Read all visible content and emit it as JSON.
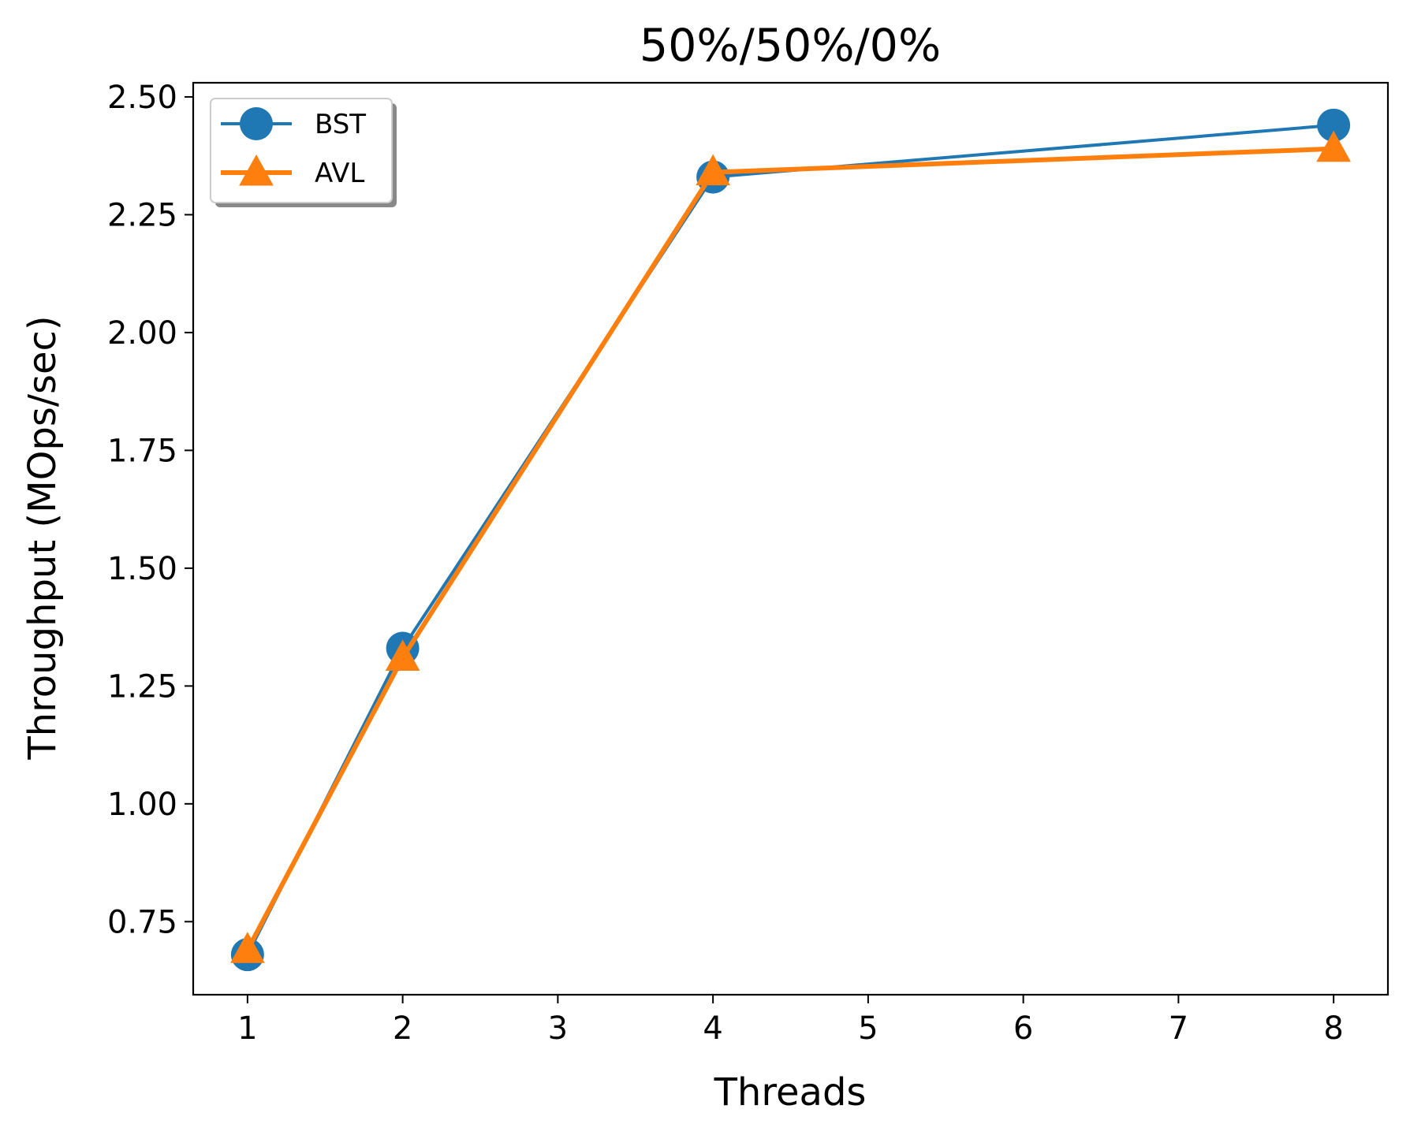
{
  "chart_data": {
    "type": "line",
    "title": "50%/50%/0%",
    "xlabel": "Threads",
    "ylabel": "Throughput (MOps/sec)",
    "x": [
      1,
      2,
      4,
      8
    ],
    "xlim": [
      0.65,
      8.35
    ],
    "ylim": [
      0.595,
      2.53
    ],
    "xticks": [
      1,
      2,
      3,
      4,
      5,
      6,
      7,
      8
    ],
    "xtick_labels": [
      "1",
      "2",
      "3",
      "4",
      "5",
      "6",
      "7",
      "8"
    ],
    "yticks": [
      0.75,
      1.0,
      1.25,
      1.5,
      1.75,
      2.0,
      2.25,
      2.5
    ],
    "ytick_labels": [
      "0.75",
      "1.00",
      "1.25",
      "1.50",
      "1.75",
      "2.00",
      "2.25",
      "2.50"
    ],
    "grid": false,
    "legend_position": "top-left",
    "series": [
      {
        "name": "BST",
        "marker": "circle",
        "color": "#1f77b4",
        "values": [
          0.68,
          1.33,
          2.33,
          2.44
        ]
      },
      {
        "name": "AVL",
        "marker": "triangle",
        "color": "#ff7f0e",
        "values": [
          0.69,
          1.31,
          2.34,
          2.39
        ]
      }
    ]
  }
}
